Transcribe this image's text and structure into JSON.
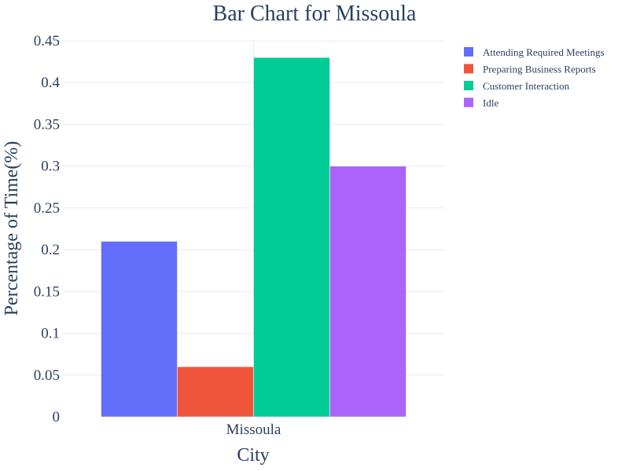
{
  "chart_data": {
    "type": "bar",
    "title": "Bar Chart for Missoula",
    "xlabel": "City",
    "ylabel": "Percentage of Time(%)",
    "categories": [
      "Missoula"
    ],
    "ylim": [
      0,
      0.45
    ],
    "yticks": [
      0,
      0.05,
      0.1,
      0.15,
      0.2,
      0.25,
      0.3,
      0.35,
      0.4,
      0.45
    ],
    "ytick_labels": [
      "0",
      "0.05",
      "0.1",
      "0.15",
      "0.2",
      "0.25",
      "0.3",
      "0.35",
      "0.4",
      "0.45"
    ],
    "grid": true,
    "legend_position": "top-right",
    "series": [
      {
        "name": "Attending Required Meetings",
        "values": [
          0.21
        ],
        "color": "#636efa"
      },
      {
        "name": "Preparing Business Reports",
        "values": [
          0.06
        ],
        "color": "#ef553b"
      },
      {
        "name": "Customer Interaction",
        "values": [
          0.43
        ],
        "color": "#00cc96"
      },
      {
        "name": "Idle",
        "values": [
          0.3
        ],
        "color": "#ab63fa"
      }
    ]
  }
}
